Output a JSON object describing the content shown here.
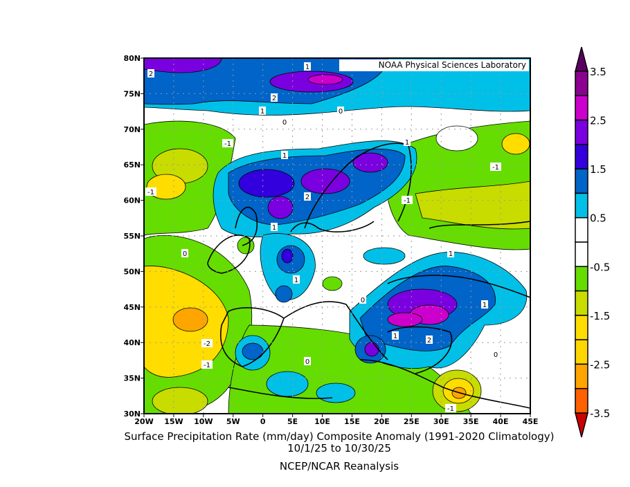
{
  "credit": "NOAA Physical Sciences Laboratory",
  "caption": {
    "title": "Surface Precipitation Rate (mm/day) Composite Anomaly (1991-2020 Climatology)",
    "dates": "10/1/25  to 10/30/25",
    "source": "NCEP/NCAR Reanalysis"
  },
  "map": {
    "lon_range": [
      -20,
      45
    ],
    "lat_range": [
      30,
      80
    ],
    "lon_labels": [
      "20W",
      "15W",
      "10W",
      "5W",
      "0",
      "5E",
      "10E",
      "15E",
      "20E",
      "25E",
      "30E",
      "35E",
      "40E",
      "45E"
    ],
    "lat_labels": [
      "80N",
      "75N",
      "70N",
      "65N",
      "60N",
      "55N",
      "50N",
      "45N",
      "40N",
      "35N",
      "30N"
    ],
    "grid": true,
    "contour_labels": [
      "2",
      "1",
      "2",
      "1",
      "0",
      "0",
      "-1",
      "1",
      "1",
      "-1",
      "-1",
      "2",
      "-1",
      "1",
      "0",
      "1",
      "1",
      "1",
      "0",
      "-2",
      "1",
      "2",
      "-1",
      "0",
      "-1",
      "0"
    ]
  },
  "colorbar": {
    "labels": [
      "3.5",
      "2.5",
      "1.5",
      "0.5",
      "-0.5",
      "-1.5",
      "-2.5",
      "-3.5"
    ],
    "top_arrow_color": "#5a0060",
    "bottom_arrow_color": "#cc0000",
    "colors": [
      "#8b0090",
      "#cc00cc",
      "#7a00e0",
      "#3300dd",
      "#0064c8",
      "#00c0e8",
      "#ffffff",
      "#ffffff",
      "#66dd00",
      "#c8dc00",
      "#ffdd00",
      "#ffd700",
      "#ffa500",
      "#ff6000"
    ]
  }
}
